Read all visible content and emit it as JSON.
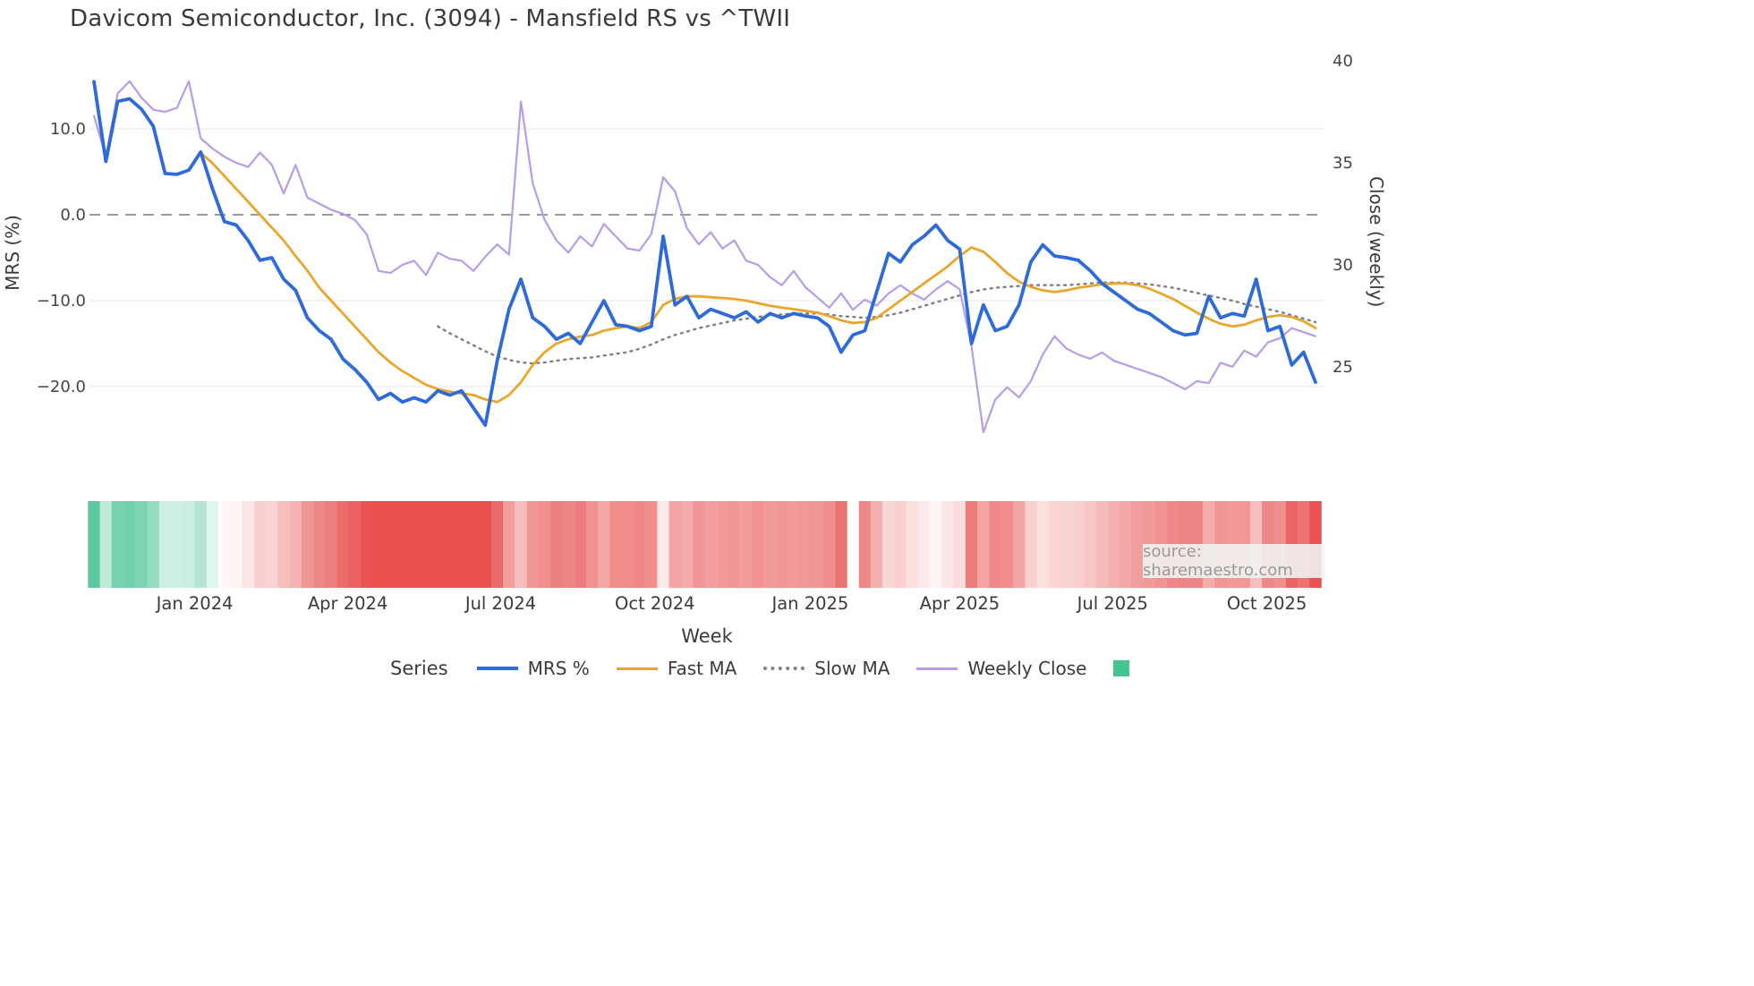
{
  "title": "Davicom Semiconductor, Inc. (3094) - Mansfield RS vs ^TWII",
  "source_text": "source: sharemaestro.com",
  "colors": {
    "mrs": "#2e6bd9",
    "fast_ma": "#e9a62c",
    "slow_ma": "#7f7f7f",
    "weekly_close": "#b79ce8",
    "zero_line": "#777777",
    "grid": "#ececec",
    "heat_green": "#2fb985",
    "heat_red": "#e84f4f",
    "legend_patch": "#42c68e",
    "axis_text": "#3a3a3a",
    "tick_text": "#444444"
  },
  "legend": {
    "title": "Series",
    "items": [
      {
        "label": "MRS %",
        "color_key": "mrs",
        "style": "solid-thick"
      },
      {
        "label": "Fast MA",
        "color_key": "fast_ma",
        "style": "solid"
      },
      {
        "label": "Slow MA",
        "color_key": "slow_ma",
        "style": "dotted"
      },
      {
        "label": "Weekly Close",
        "color_key": "weekly_close",
        "style": "solid"
      },
      {
        "label": "",
        "color_key": "legend_patch",
        "style": "patch"
      }
    ]
  },
  "axes": {
    "left": {
      "title": "MRS (%)",
      "ticks": [
        {
          "v": 10,
          "label": "10.0"
        },
        {
          "v": 0,
          "label": "0.0"
        },
        {
          "v": -10,
          "label": "−10.0"
        },
        {
          "v": -20,
          "label": "−20.0"
        }
      ]
    },
    "right": {
      "title": "Close (weekly)",
      "ticks": [
        {
          "v": 40,
          "label": "40"
        },
        {
          "v": 35,
          "label": "35"
        },
        {
          "v": 30,
          "label": "30"
        },
        {
          "v": 25,
          "label": "25"
        }
      ]
    },
    "x": {
      "title": "Week",
      "ticks": [
        {
          "i": 8.5,
          "label": "Jan 2024"
        },
        {
          "i": 21.4,
          "label": "Apr 2024"
        },
        {
          "i": 34.3,
          "label": "Jul 2024"
        },
        {
          "i": 47.3,
          "label": "Oct 2024"
        },
        {
          "i": 60.4,
          "label": "Jan 2025"
        },
        {
          "i": 73.0,
          "label": "Apr 2025"
        },
        {
          "i": 85.9,
          "label": "Jul 2025"
        },
        {
          "i": 98.9,
          "label": "Oct 2025"
        }
      ]
    }
  },
  "chart_data": {
    "type": "line",
    "x_unit": "week_index",
    "n_weeks": 104,
    "missing_week_index": 64,
    "left_axis_range": [
      -26,
      18
    ],
    "right_axis_range": [
      21,
      40
    ],
    "zero_reference_line": 0,
    "heatmap": {
      "derived_from": "MRS %",
      "vmax": 20,
      "note": "green = positive MRS, red = negative MRS, intensity = |MRS|"
    },
    "series": [
      {
        "name": "MRS %",
        "axis": "left",
        "color_key": "mrs",
        "values": [
          15.5,
          6.2,
          13.2,
          13.5,
          12.3,
          10.3,
          4.8,
          4.7,
          5.2,
          7.3,
          3.0,
          -0.8,
          -1.2,
          -3.0,
          -5.3,
          -5.0,
          -7.5,
          -8.8,
          -12.0,
          -13.5,
          -14.5,
          -16.8,
          -18.0,
          -19.5,
          -21.5,
          -20.8,
          -21.8,
          -21.3,
          -21.8,
          -20.5,
          -21.0,
          -20.5,
          -22.5,
          -24.5,
          -17.0,
          -11.0,
          -7.5,
          -12.0,
          -13.0,
          -14.5,
          -13.8,
          -15.0,
          -12.5,
          -10.0,
          -12.8,
          -13.0,
          -13.5,
          -13.0,
          -2.5,
          -10.5,
          -9.5,
          -12.0,
          -11.0,
          -11.5,
          -12.0,
          -11.3,
          -12.5,
          -11.5,
          -12.0,
          -11.5,
          -11.8,
          -12.0,
          -13.0,
          -16.0,
          -14.0,
          -13.5,
          -9.0,
          -4.5,
          -5.5,
          -3.5,
          -2.5,
          -1.2,
          -3.0,
          -4.0,
          -15.0,
          -10.5,
          -13.5,
          -13.0,
          -10.5,
          -5.5,
          -3.5,
          -4.8,
          -5.0,
          -5.3,
          -6.5,
          -8.0,
          -9.0,
          -10.0,
          -11.0,
          -11.5,
          -12.5,
          -13.5,
          -14.0,
          -13.8,
          -9.5,
          -12.0,
          -11.5,
          -11.8,
          -7.5,
          -13.5,
          -13.0,
          -17.5,
          -16.0,
          -19.5
        ]
      },
      {
        "name": "Fast MA",
        "axis": "left",
        "color_key": "fast_ma",
        "values": [
          null,
          null,
          null,
          null,
          null,
          null,
          null,
          null,
          null,
          7.2,
          6.0,
          4.5,
          3.0,
          1.5,
          0.0,
          -1.5,
          -3.0,
          -4.8,
          -6.5,
          -8.5,
          -10.0,
          -11.5,
          -13.0,
          -14.5,
          -16.0,
          -17.2,
          -18.2,
          -19.0,
          -19.8,
          -20.3,
          -20.6,
          -20.8,
          -21.0,
          -21.5,
          -21.8,
          -21.0,
          -19.5,
          -17.5,
          -16.0,
          -15.0,
          -14.5,
          -14.2,
          -14.0,
          -13.5,
          -13.2,
          -13.0,
          -13.2,
          -12.5,
          -10.5,
          -9.8,
          -9.5,
          -9.5,
          -9.6,
          -9.7,
          -9.8,
          -10.0,
          -10.3,
          -10.6,
          -10.8,
          -11.0,
          -11.2,
          -11.4,
          -11.8,
          -12.3,
          -12.6,
          -12.5,
          -12.0,
          -11.0,
          -10.0,
          -9.0,
          -8.0,
          -7.0,
          -6.0,
          -4.8,
          -3.8,
          -4.3,
          -5.5,
          -6.8,
          -7.8,
          -8.4,
          -8.8,
          -9.0,
          -8.8,
          -8.5,
          -8.3,
          -8.1,
          -8.0,
          -8.0,
          -8.2,
          -8.6,
          -9.2,
          -9.8,
          -10.6,
          -11.4,
          -12.1,
          -12.7,
          -13.0,
          -12.8,
          -12.3,
          -11.9,
          -11.7,
          -11.9,
          -12.4,
          -13.2
        ]
      },
      {
        "name": "Slow MA",
        "axis": "left",
        "color_key": "slow_ma",
        "values": [
          null,
          null,
          null,
          null,
          null,
          null,
          null,
          null,
          null,
          null,
          null,
          null,
          null,
          null,
          null,
          null,
          null,
          null,
          null,
          null,
          null,
          null,
          null,
          null,
          null,
          null,
          null,
          null,
          null,
          -13.0,
          -13.8,
          -14.5,
          -15.2,
          -15.9,
          -16.5,
          -16.9,
          -17.2,
          -17.3,
          -17.2,
          -17.0,
          -16.8,
          -16.7,
          -16.6,
          -16.4,
          -16.2,
          -16.0,
          -15.6,
          -15.1,
          -14.5,
          -14.0,
          -13.6,
          -13.2,
          -12.9,
          -12.6,
          -12.3,
          -12.1,
          -11.9,
          -11.7,
          -11.6,
          -11.5,
          -11.5,
          -11.5,
          -11.6,
          -11.8,
          -11.9,
          -12.0,
          -11.9,
          -11.7,
          -11.4,
          -11.0,
          -10.6,
          -10.2,
          -9.8,
          -9.4,
          -9.0,
          -8.7,
          -8.5,
          -8.4,
          -8.3,
          -8.2,
          -8.2,
          -8.2,
          -8.2,
          -8.1,
          -8.0,
          -7.9,
          -7.9,
          -7.9,
          -8.0,
          -8.1,
          -8.3,
          -8.5,
          -8.8,
          -9.1,
          -9.4,
          -9.7,
          -10.0,
          -10.4,
          -10.7,
          -11.0,
          -11.3,
          -11.7,
          -12.1,
          -12.5
        ]
      },
      {
        "name": "Weekly Close",
        "axis": "right",
        "color_key": "weekly_close",
        "values": [
          37.3,
          35.3,
          38.4,
          39.0,
          38.2,
          37.6,
          37.5,
          37.7,
          39.0,
          36.2,
          35.7,
          35.3,
          35.0,
          34.8,
          35.5,
          34.9,
          33.5,
          34.9,
          33.3,
          33.0,
          32.7,
          32.5,
          32.2,
          31.5,
          29.7,
          29.6,
          30.0,
          30.2,
          29.5,
          30.6,
          30.3,
          30.2,
          29.7,
          30.4,
          31.0,
          30.5,
          38.0,
          34.0,
          32.2,
          31.2,
          30.6,
          31.4,
          30.9,
          32.0,
          31.4,
          30.8,
          30.7,
          31.5,
          34.3,
          33.6,
          31.8,
          31.0,
          31.6,
          30.8,
          31.2,
          30.2,
          30.0,
          29.4,
          29.0,
          29.7,
          28.9,
          28.4,
          27.9,
          28.6,
          27.8,
          28.3,
          28.0,
          28.6,
          29.0,
          28.6,
          28.3,
          28.8,
          29.2,
          28.8,
          26.0,
          21.8,
          23.4,
          24.0,
          23.5,
          24.3,
          25.6,
          26.5,
          25.9,
          25.6,
          25.4,
          25.7,
          25.3,
          25.1,
          24.9,
          24.7,
          24.5,
          24.2,
          23.9,
          24.3,
          24.2,
          25.2,
          25.0,
          25.8,
          25.5,
          26.2,
          26.4,
          26.9,
          26.7,
          26.5
        ]
      }
    ]
  }
}
